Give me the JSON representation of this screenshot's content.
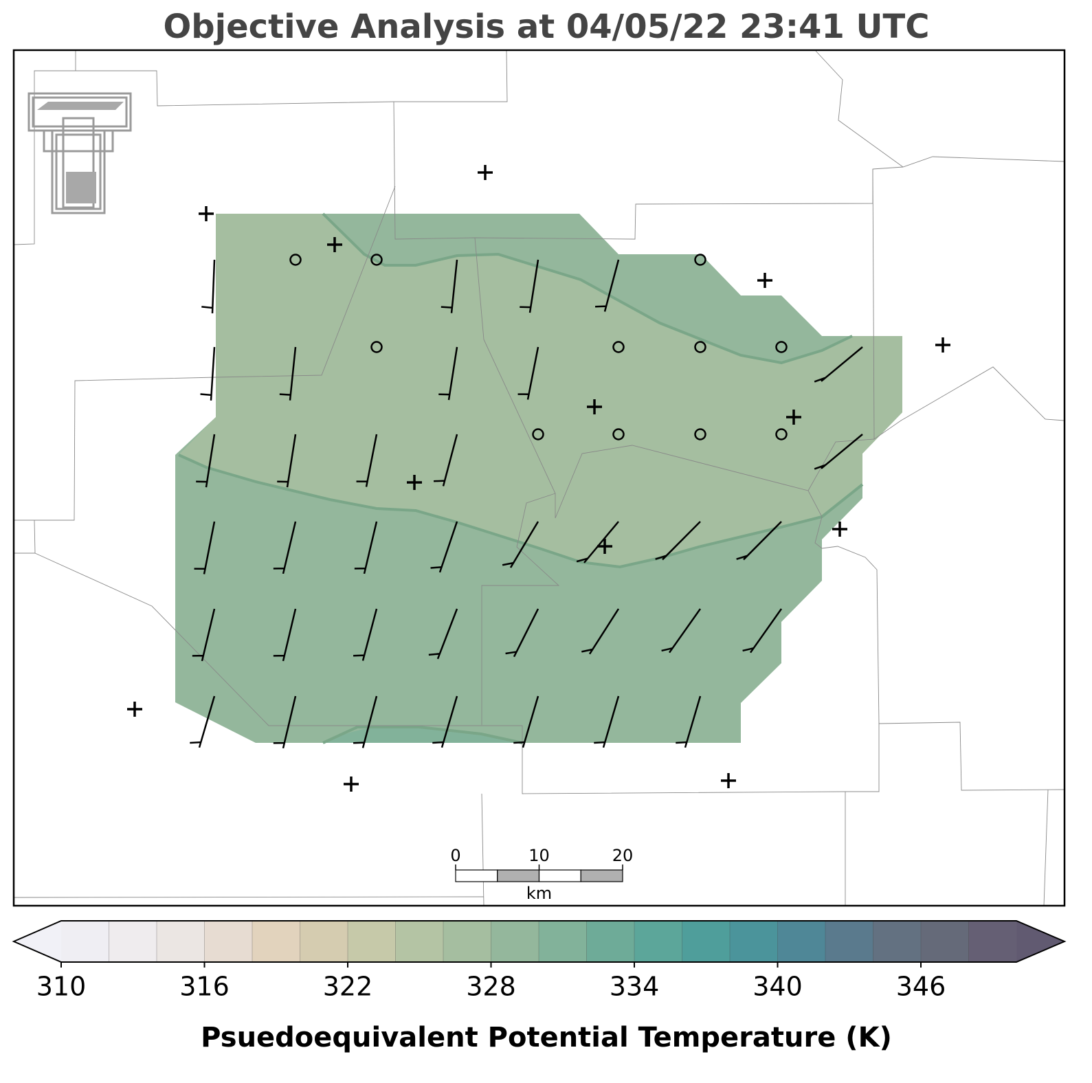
{
  "title": "Objective Analysis at 04/05/22 23:41 UTC",
  "colorbar": {
    "label": "Psuedoequivalent Potential Temperature (K)",
    "levels": [
      310,
      312,
      314,
      316,
      318,
      320,
      322,
      324,
      326,
      328,
      330,
      332,
      334,
      336,
      338,
      340,
      342,
      344,
      346,
      348,
      350
    ],
    "colors": [
      "#efeef3",
      "#efecee",
      "#ebe6e3",
      "#e7dcd2",
      "#e2d3bd",
      "#d5ccb0",
      "#c6c9a9",
      "#b4c4a4",
      "#a5bea0",
      "#94b79c",
      "#82b29a",
      "#6eab98",
      "#5ca69a",
      "#4f9e9b",
      "#4b949b",
      "#4f8797",
      "#5a7a8d",
      "#637181",
      "#656a79",
      "#655f74"
    ],
    "under_color": "#f1f1f7",
    "over_color": "#615a71",
    "ticks": [
      310,
      316,
      322,
      328,
      334,
      340,
      346
    ]
  },
  "scale_bar": {
    "ticks": [
      0,
      10,
      20
    ],
    "unit": "km"
  }
}
